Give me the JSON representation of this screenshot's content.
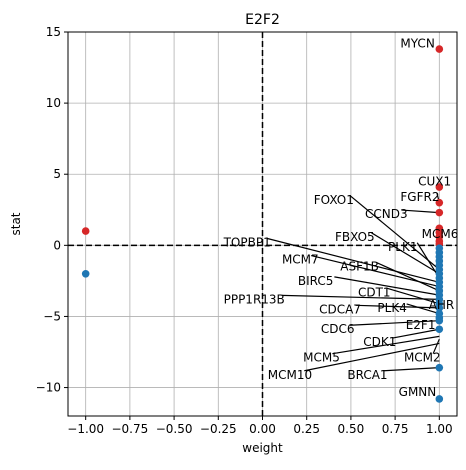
{
  "chart_data": {
    "type": "scatter",
    "title": "E2F2",
    "xlabel": "weight",
    "ylabel": "stat",
    "xlim": [
      -1.1,
      1.1
    ],
    "ylim": [
      -12,
      15
    ],
    "xticks": [
      -1.0,
      -0.75,
      -0.5,
      -0.25,
      0.0,
      0.25,
      0.5,
      0.75,
      1.0
    ],
    "xtick_labels": [
      "−1.00",
      "−0.75",
      "−0.50",
      "−0.25",
      "0.00",
      "0.25",
      "0.50",
      "0.75",
      "1.00"
    ],
    "yticks": [
      -10,
      -5,
      0,
      5,
      10,
      15
    ],
    "ytick_labels": [
      "−10",
      "−5",
      "0",
      "5",
      "10",
      "15"
    ],
    "grid": true,
    "reference_lines": {
      "x": 0,
      "y": 0,
      "style": "dashed"
    },
    "colors": {
      "positive": "#d62728",
      "negative": "#1f77b4"
    },
    "points": [
      {
        "x": -1.0,
        "y": 1.0
      },
      {
        "x": -1.0,
        "y": -2.0
      },
      {
        "x": 1.0,
        "y": 13.8
      },
      {
        "x": 1.0,
        "y": 4.1
      },
      {
        "x": 1.0,
        "y": 3.0
      },
      {
        "x": 1.0,
        "y": 2.3
      },
      {
        "x": 1.0,
        "y": 1.2
      },
      {
        "x": 1.0,
        "y": 0.9
      },
      {
        "x": 1.0,
        "y": 0.6
      },
      {
        "x": 1.0,
        "y": 0.3
      },
      {
        "x": 1.0,
        "y": 0.1
      },
      {
        "x": 1.0,
        "y": -0.2
      },
      {
        "x": 1.0,
        "y": -0.5
      },
      {
        "x": 1.0,
        "y": -0.8
      },
      {
        "x": 1.0,
        "y": -1.1
      },
      {
        "x": 1.0,
        "y": -1.4
      },
      {
        "x": 1.0,
        "y": -1.7
      },
      {
        "x": 1.0,
        "y": -2.0
      },
      {
        "x": 1.0,
        "y": -2.3
      },
      {
        "x": 1.0,
        "y": -2.6
      },
      {
        "x": 1.0,
        "y": -2.9
      },
      {
        "x": 1.0,
        "y": -3.2
      },
      {
        "x": 1.0,
        "y": -3.5
      },
      {
        "x": 1.0,
        "y": -3.8
      },
      {
        "x": 1.0,
        "y": -4.1
      },
      {
        "x": 1.0,
        "y": -4.4
      },
      {
        "x": 1.0,
        "y": -4.8
      },
      {
        "x": 1.0,
        "y": -5.1
      },
      {
        "x": 1.0,
        "y": -5.3
      },
      {
        "x": 1.0,
        "y": -5.9
      },
      {
        "x": 1.0,
        "y": -8.6
      },
      {
        "x": 1.0,
        "y": -10.8
      }
    ],
    "annotations": [
      {
        "text": "MYCN",
        "label": [
          0.78,
          14.2
        ],
        "anchor": null
      },
      {
        "text": "CUX1",
        "label": [
          0.88,
          4.5
        ],
        "anchor": null
      },
      {
        "text": "FGFR2",
        "label": [
          0.78,
          3.4
        ],
        "anchor": [
          1.0,
          3.0
        ]
      },
      {
        "text": "CCND3",
        "label": [
          0.58,
          2.2
        ],
        "anchor": [
          1.0,
          2.3
        ]
      },
      {
        "text": "MCM6",
        "label": [
          0.9,
          0.8
        ],
        "anchor": [
          1.0,
          0.6
        ]
      },
      {
        "text": "FOXO1",
        "label": [
          0.29,
          3.2
        ],
        "anchor": [
          1.0,
          -1.7
        ]
      },
      {
        "text": "FBXO5",
        "label": [
          0.41,
          0.6
        ],
        "anchor": [
          1.0,
          -2.0
        ]
      },
      {
        "text": "PLK1",
        "label": [
          0.71,
          -0.1
        ],
        "anchor": [
          1.0,
          -2.3
        ]
      },
      {
        "text": "TOPBP1",
        "label": [
          -0.22,
          0.2
        ],
        "anchor": [
          1.0,
          -2.6
        ]
      },
      {
        "text": "MCM7",
        "label": [
          0.11,
          -1.0
        ],
        "anchor": [
          1.0,
          -2.9
        ]
      },
      {
        "text": "ASF1B",
        "label": [
          0.44,
          -1.5
        ],
        "anchor": [
          1.0,
          -3.2
        ]
      },
      {
        "text": "BIRC5",
        "label": [
          0.2,
          -2.5
        ],
        "anchor": [
          1.0,
          -3.5
        ]
      },
      {
        "text": "PPP1R13B",
        "label": [
          -0.22,
          -3.8
        ],
        "anchor": [
          1.0,
          -3.8
        ]
      },
      {
        "text": "CDT1",
        "label": [
          0.54,
          -3.3
        ],
        "anchor": [
          1.0,
          -4.1
        ]
      },
      {
        "text": "CDCA7",
        "label": [
          0.32,
          -4.5
        ],
        "anchor": [
          1.0,
          -4.4
        ]
      },
      {
        "text": "PLK4",
        "label": [
          0.65,
          -4.4
        ],
        "anchor": [
          1.0,
          -4.8
        ]
      },
      {
        "text": "AHR",
        "label": [
          0.94,
          -4.2
        ],
        "anchor": [
          1.0,
          -5.1
        ]
      },
      {
        "text": "CDC6",
        "label": [
          0.33,
          -5.9
        ],
        "anchor": [
          1.0,
          -5.3
        ]
      },
      {
        "text": "E2F1",
        "label": [
          0.81,
          -5.6
        ],
        "anchor": null
      },
      {
        "text": "CDK1",
        "label": [
          0.57,
          -6.8
        ],
        "anchor": [
          1.0,
          -5.9
        ]
      },
      {
        "text": "MCM5",
        "label": [
          0.23,
          -7.9
        ],
        "anchor": [
          1.0,
          -6.4
        ]
      },
      {
        "text": "MCM2",
        "label": [
          0.8,
          -7.9
        ],
        "anchor": [
          1.0,
          -6.6
        ]
      },
      {
        "text": "MCM10",
        "label": [
          0.03,
          -9.1
        ],
        "anchor": [
          1.0,
          -6.9
        ]
      },
      {
        "text": "BRCA1",
        "label": [
          0.48,
          -9.1
        ],
        "anchor": [
          1.0,
          -8.6
        ]
      },
      {
        "text": "GMNN",
        "label": [
          0.77,
          -10.3
        ],
        "anchor": null
      }
    ]
  }
}
